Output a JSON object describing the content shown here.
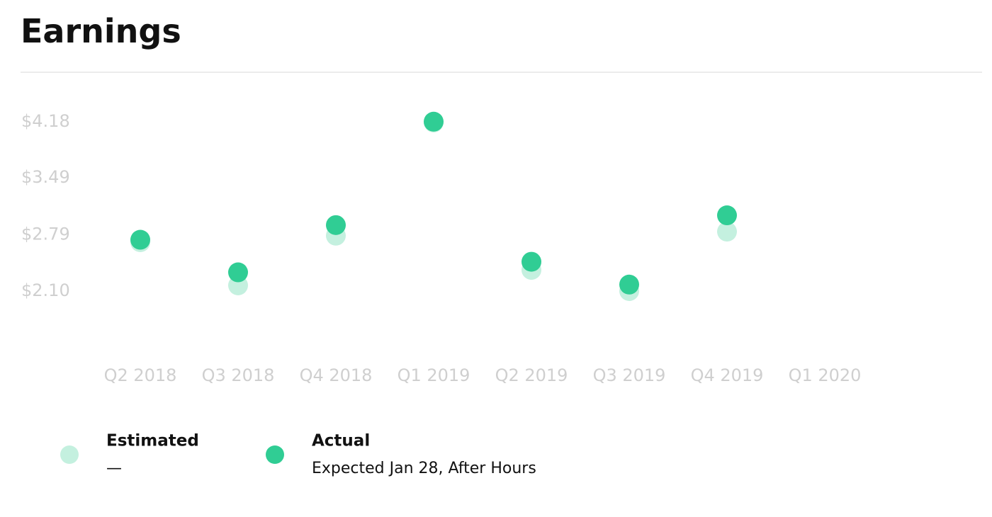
{
  "chart_data": {
    "type": "scatter",
    "title": "Earnings",
    "categories": [
      "Q2 2018",
      "Q3 2018",
      "Q4 2018",
      "Q1 2019",
      "Q2 2019",
      "Q3 2019",
      "Q4 2019",
      "Q1 2020"
    ],
    "series": [
      {
        "name": "Estimated",
        "note": "—",
        "color": "#c4f0df",
        "values": [
          2.7,
          2.17,
          2.78,
          4.17,
          2.36,
          2.1,
          2.83,
          null
        ]
      },
      {
        "name": "Actual",
        "note": "Expected Jan 28, After Hours",
        "color": "#30cd94",
        "values": [
          2.73,
          2.33,
          2.91,
          4.18,
          2.46,
          2.18,
          3.03,
          null
        ]
      }
    ],
    "ylim": [
      1.6,
      4.4
    ],
    "yticks": [
      {
        "value": 2.1,
        "label": "$2.10"
      },
      {
        "value": 2.79,
        "label": "$2.79"
      },
      {
        "value": 3.49,
        "label": "$3.49"
      },
      {
        "value": 4.18,
        "label": "$4.18"
      }
    ]
  }
}
